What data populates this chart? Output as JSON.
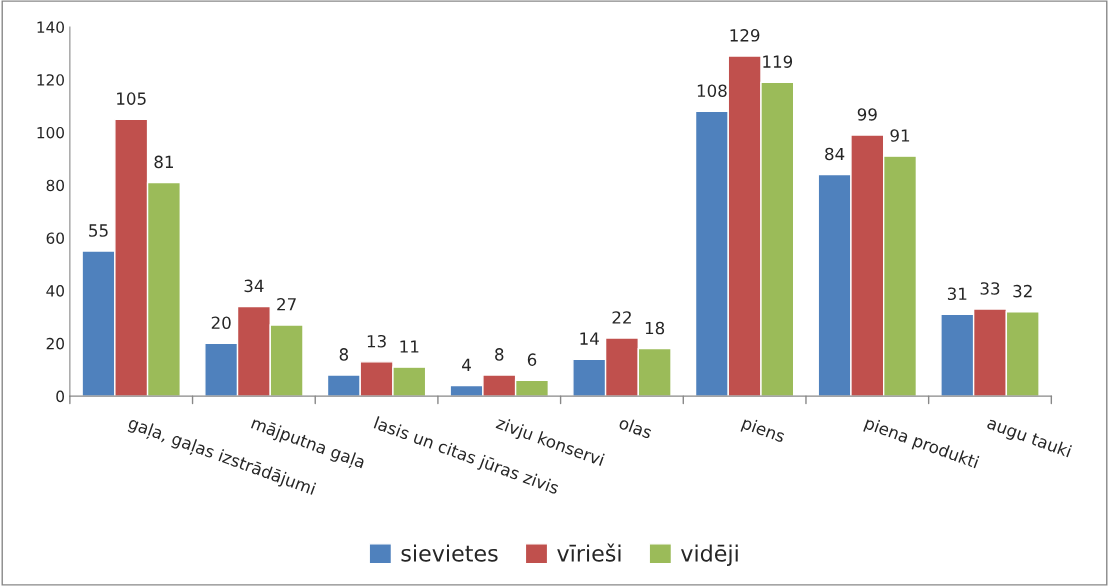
{
  "chart_data": {
    "type": "bar",
    "categories": [
      "gaļa, gaļas izstrādājumi",
      "mājputna gaļa",
      "lasis un citas jūras zivis",
      "zivju konservi",
      "olas",
      "piens",
      "piena produkti",
      "augu tauki"
    ],
    "series": [
      {
        "name": "sievietes",
        "color": "#4f81bd",
        "values": [
          55,
          20,
          8,
          4,
          14,
          108,
          84,
          31
        ]
      },
      {
        "name": "vīrieši",
        "color": "#c0504d",
        "values": [
          105,
          34,
          13,
          8,
          22,
          129,
          99,
          33
        ]
      },
      {
        "name": "vidēji",
        "color": "#9bbb59",
        "values": [
          81,
          27,
          11,
          6,
          18,
          119,
          91,
          32
        ]
      }
    ],
    "ylim": [
      0,
      140
    ],
    "yticks": [
      0,
      20,
      40,
      60,
      80,
      100,
      120,
      140
    ],
    "grid": false,
    "legend": "bottom",
    "data_labels": true
  }
}
